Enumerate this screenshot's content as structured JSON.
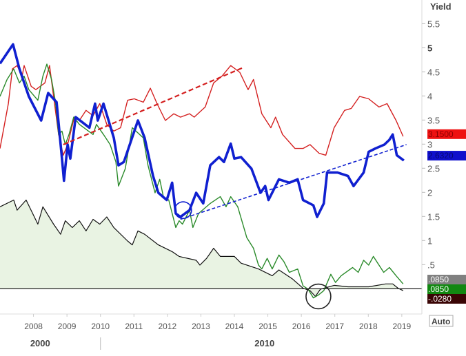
{
  "chart_data": {
    "type": "line",
    "title": "",
    "ylabel": "Yield",
    "xlabel": "",
    "xlim": [
      2007.0,
      2019.6
    ],
    "ylim": [
      -0.51,
      5.99
    ],
    "grid": false,
    "legend": "none",
    "y_ticks": [
      {
        "value": 5.5,
        "label": "5.5"
      },
      {
        "value": 5,
        "label": "5",
        "bold": true
      },
      {
        "value": 4.5,
        "label": "4.5"
      },
      {
        "value": 4,
        "label": "4"
      },
      {
        "value": 3.5,
        "label": "3.5"
      },
      {
        "value": 3,
        "label": "3"
      },
      {
        "value": 2.5,
        "label": "2.5"
      },
      {
        "value": 2,
        "label": "2"
      },
      {
        "value": 1.5,
        "label": "1.5"
      },
      {
        "value": 1,
        "label": "1"
      },
      {
        "value": 0.5,
        "label": ".5"
      }
    ],
    "x_ticks": [
      {
        "value": 2008,
        "label": "2008"
      },
      {
        "value": 2009,
        "label": "2009"
      },
      {
        "value": 2010,
        "label": "2010"
      },
      {
        "value": 2011,
        "label": "2011"
      },
      {
        "value": 2012,
        "label": "2012"
      },
      {
        "value": 2013,
        "label": "2013"
      },
      {
        "value": 2014,
        "label": "2014"
      },
      {
        "value": 2015,
        "label": "2015"
      },
      {
        "value": 2016,
        "label": "2016"
      },
      {
        "value": 2017,
        "label": "2017"
      },
      {
        "value": 2018,
        "label": "2018"
      },
      {
        "value": 2019,
        "label": "2019"
      }
    ],
    "eras": [
      {
        "value": 2008.2,
        "label": "2000"
      },
      {
        "value": 2014.9,
        "label": "2010"
      }
    ],
    "era_divider": 2010.0,
    "series": [
      {
        "name": "black",
        "color": "#111111",
        "width": 1.2,
        "fill": "#e9f3e3",
        "points": [
          [
            2007.0,
            1.7
          ],
          [
            2007.41,
            1.84
          ],
          [
            2007.51,
            1.63
          ],
          [
            2007.78,
            1.84
          ],
          [
            2008.13,
            1.34
          ],
          [
            2008.28,
            1.7
          ],
          [
            2008.6,
            1.34
          ],
          [
            2008.81,
            1.13
          ],
          [
            2008.95,
            1.41
          ],
          [
            2009.16,
            1.27
          ],
          [
            2009.37,
            1.41
          ],
          [
            2009.57,
            1.2
          ],
          [
            2009.78,
            1.44
          ],
          [
            2009.98,
            1.34
          ],
          [
            2010.19,
            1.49
          ],
          [
            2010.4,
            1.27
          ],
          [
            2010.81,
            0.99
          ],
          [
            2010.95,
            0.91
          ],
          [
            2011.12,
            1.2
          ],
          [
            2011.32,
            1.13
          ],
          [
            2011.73,
            0.91
          ],
          [
            2012.14,
            0.77
          ],
          [
            2012.35,
            0.67
          ],
          [
            2012.86,
            0.59
          ],
          [
            2012.97,
            0.49
          ],
          [
            2013.17,
            0.63
          ],
          [
            2013.38,
            0.84
          ],
          [
            2013.58,
            0.67
          ],
          [
            2014.0,
            0.67
          ],
          [
            2014.2,
            0.53
          ],
          [
            2014.72,
            0.41
          ],
          [
            2015.13,
            0.27
          ],
          [
            2015.33,
            0.39
          ],
          [
            2015.74,
            0.2
          ],
          [
            2016.05,
            0.01
          ],
          [
            2016.26,
            -0.04
          ],
          [
            2016.42,
            -0.16
          ],
          [
            2016.57,
            -0.01
          ],
          [
            2016.98,
            0.07
          ],
          [
            2017.39,
            0.04
          ],
          [
            2018.01,
            0.04
          ],
          [
            2018.52,
            0.1
          ],
          [
            2018.73,
            0.1
          ],
          [
            2018.89,
            0.01
          ],
          [
            2019.04,
            -0.04
          ]
        ]
      },
      {
        "name": "red",
        "color": "#d42020",
        "width": 1.4,
        "points": [
          [
            2007.0,
            2.91
          ],
          [
            2007.25,
            3.84
          ],
          [
            2007.37,
            4.56
          ],
          [
            2007.51,
            4.63
          ],
          [
            2007.66,
            4.41
          ],
          [
            2007.72,
            4.63
          ],
          [
            2007.93,
            4.2
          ],
          [
            2008.07,
            4.13
          ],
          [
            2008.34,
            4.27
          ],
          [
            2008.48,
            4.63
          ],
          [
            2008.6,
            3.99
          ],
          [
            2008.75,
            3.2
          ],
          [
            2008.89,
            2.77
          ],
          [
            2009.02,
            2.99
          ],
          [
            2009.22,
            3.56
          ],
          [
            2009.37,
            3.49
          ],
          [
            2009.57,
            3.7
          ],
          [
            2009.78,
            3.59
          ],
          [
            2009.98,
            3.84
          ],
          [
            2010.19,
            3.41
          ],
          [
            2010.4,
            3.27
          ],
          [
            2010.6,
            3.34
          ],
          [
            2010.81,
            3.91
          ],
          [
            2011.01,
            3.94
          ],
          [
            2011.28,
            3.87
          ],
          [
            2011.49,
            4.16
          ],
          [
            2011.69,
            3.84
          ],
          [
            2011.94,
            3.49
          ],
          [
            2012.19,
            3.63
          ],
          [
            2012.39,
            3.56
          ],
          [
            2012.66,
            3.63
          ],
          [
            2012.8,
            3.56
          ],
          [
            2013.13,
            3.77
          ],
          [
            2013.38,
            4.27
          ],
          [
            2013.63,
            4.41
          ],
          [
            2013.89,
            4.63
          ],
          [
            2014.16,
            4.49
          ],
          [
            2014.41,
            4.13
          ],
          [
            2014.57,
            4.34
          ],
          [
            2014.82,
            3.63
          ],
          [
            2015.09,
            3.34
          ],
          [
            2015.23,
            3.56
          ],
          [
            2015.44,
            3.2
          ],
          [
            2015.81,
            2.91
          ],
          [
            2016.05,
            2.91
          ],
          [
            2016.26,
            2.99
          ],
          [
            2016.53,
            2.81
          ],
          [
            2016.73,
            2.77
          ],
          [
            2016.98,
            3.34
          ],
          [
            2017.29,
            3.7
          ],
          [
            2017.49,
            3.74
          ],
          [
            2017.74,
            3.99
          ],
          [
            2018.01,
            3.94
          ],
          [
            2018.32,
            3.77
          ],
          [
            2018.56,
            3.84
          ],
          [
            2018.83,
            3.49
          ],
          [
            2019.04,
            3.16
          ]
        ]
      },
      {
        "name": "green",
        "color": "#2a8a2a",
        "width": 1.4,
        "points": [
          [
            2007.0,
            3.99
          ],
          [
            2007.21,
            4.34
          ],
          [
            2007.41,
            4.56
          ],
          [
            2007.58,
            4.27
          ],
          [
            2007.72,
            4.41
          ],
          [
            2007.86,
            4.13
          ],
          [
            2008.13,
            3.91
          ],
          [
            2008.28,
            4.41
          ],
          [
            2008.4,
            4.66
          ],
          [
            2008.54,
            4.34
          ],
          [
            2008.65,
            3.91
          ],
          [
            2008.75,
            3.2
          ],
          [
            2008.85,
            3.27
          ],
          [
            2008.95,
            2.99
          ],
          [
            2009.06,
            3.2
          ],
          [
            2009.2,
            3.56
          ],
          [
            2009.37,
            3.41
          ],
          [
            2009.78,
            3.2
          ],
          [
            2009.88,
            3.41
          ],
          [
            2010.09,
            3.2
          ],
          [
            2010.29,
            2.99
          ],
          [
            2010.46,
            2.63
          ],
          [
            2010.54,
            2.13
          ],
          [
            2010.74,
            2.49
          ],
          [
            2010.95,
            3.34
          ],
          [
            2011.28,
            3.13
          ],
          [
            2011.42,
            2.56
          ],
          [
            2011.63,
            1.99
          ],
          [
            2011.77,
            2.27
          ],
          [
            2011.88,
            1.91
          ],
          [
            2012.04,
            1.84
          ],
          [
            2012.25,
            1.27
          ],
          [
            2012.35,
            1.41
          ],
          [
            2012.45,
            1.34
          ],
          [
            2012.66,
            1.63
          ],
          [
            2012.76,
            1.27
          ],
          [
            2012.93,
            1.56
          ],
          [
            2013.28,
            1.77
          ],
          [
            2013.58,
            1.91
          ],
          [
            2013.75,
            1.7
          ],
          [
            2013.89,
            1.91
          ],
          [
            2014.1,
            1.7
          ],
          [
            2014.37,
            1.06
          ],
          [
            2014.57,
            0.84
          ],
          [
            2014.72,
            0.49
          ],
          [
            2014.82,
            0.41
          ],
          [
            2014.98,
            0.63
          ],
          [
            2015.13,
            0.41
          ],
          [
            2015.33,
            0.7
          ],
          [
            2015.48,
            0.56
          ],
          [
            2015.64,
            0.34
          ],
          [
            2015.89,
            0.41
          ],
          [
            2016.05,
            0.06
          ],
          [
            2016.2,
            -0.01
          ],
          [
            2016.36,
            -0.19
          ],
          [
            2016.51,
            -0.13
          ],
          [
            2016.67,
            -0.04
          ],
          [
            2016.88,
            0.3
          ],
          [
            2017.02,
            0.13
          ],
          [
            2017.19,
            0.27
          ],
          [
            2017.53,
            0.44
          ],
          [
            2017.7,
            0.34
          ],
          [
            2017.86,
            0.59
          ],
          [
            2018.01,
            0.49
          ],
          [
            2018.15,
            0.67
          ],
          [
            2018.32,
            0.49
          ],
          [
            2018.46,
            0.34
          ],
          [
            2018.63,
            0.44
          ],
          [
            2018.83,
            0.27
          ],
          [
            2019.04,
            0.1
          ]
        ]
      },
      {
        "name": "blue",
        "color": "#1020d0",
        "width": 3.6,
        "points": [
          [
            2007.0,
            4.67
          ],
          [
            2007.39,
            5.07
          ],
          [
            2007.58,
            4.56
          ],
          [
            2007.86,
            3.99
          ],
          [
            2008.23,
            3.49
          ],
          [
            2008.44,
            4.06
          ],
          [
            2008.69,
            3.87
          ],
          [
            2008.85,
            2.7
          ],
          [
            2008.91,
            2.24
          ],
          [
            2009.02,
            2.99
          ],
          [
            2009.1,
            2.7
          ],
          [
            2009.26,
            3.56
          ],
          [
            2009.67,
            3.34
          ],
          [
            2009.84,
            3.84
          ],
          [
            2009.92,
            3.49
          ],
          [
            2010.09,
            3.84
          ],
          [
            2010.4,
            3.13
          ],
          [
            2010.54,
            2.56
          ],
          [
            2010.7,
            2.63
          ],
          [
            2011.12,
            3.49
          ],
          [
            2011.32,
            3.13
          ],
          [
            2011.57,
            2.34
          ],
          [
            2011.73,
            1.99
          ],
          [
            2011.98,
            1.84
          ],
          [
            2012.14,
            2.2
          ],
          [
            2012.25,
            1.56
          ],
          [
            2012.39,
            1.49
          ],
          [
            2012.66,
            1.63
          ],
          [
            2012.86,
            1.99
          ],
          [
            2013.07,
            1.77
          ],
          [
            2013.28,
            2.56
          ],
          [
            2013.54,
            2.73
          ],
          [
            2013.69,
            2.63
          ],
          [
            2013.89,
            3.01
          ],
          [
            2014.0,
            2.7
          ],
          [
            2014.2,
            2.73
          ],
          [
            2014.51,
            2.49
          ],
          [
            2014.78,
            1.99
          ],
          [
            2014.92,
            2.13
          ],
          [
            2015.02,
            1.84
          ],
          [
            2015.33,
            2.27
          ],
          [
            2015.64,
            2.2
          ],
          [
            2015.89,
            2.27
          ],
          [
            2016.05,
            1.84
          ],
          [
            2016.36,
            1.73
          ],
          [
            2016.47,
            1.49
          ],
          [
            2016.67,
            1.77
          ],
          [
            2016.77,
            2.41
          ],
          [
            2017.08,
            2.41
          ],
          [
            2017.39,
            2.34
          ],
          [
            2017.56,
            2.13
          ],
          [
            2017.86,
            2.41
          ],
          [
            2018.01,
            2.84
          ],
          [
            2018.21,
            2.91
          ],
          [
            2018.48,
            2.99
          ],
          [
            2018.63,
            3.09
          ],
          [
            2018.73,
            3.2
          ],
          [
            2018.85,
            2.77
          ],
          [
            2019.06,
            2.66
          ]
        ]
      }
    ],
    "trendlines": [
      {
        "name": "red-trend",
        "color": "#d42020",
        "width": 2.2,
        "dash": "7,4",
        "from": [
          2008.89,
          2.99
        ],
        "to": [
          2014.3,
          4.6
        ]
      },
      {
        "name": "blue-trend",
        "color": "#1020d0",
        "width": 1.6,
        "dash": "5,3",
        "from": [
          2012.39,
          1.44
        ],
        "to": [
          2019.14,
          2.99
        ]
      }
    ],
    "annotations": [
      {
        "name": "blue-circle",
        "color": "#1020d0",
        "at": [
          2012.47,
          1.63
        ],
        "radius_years": 0.25
      },
      {
        "name": "black-circle",
        "color": "#222222",
        "at": [
          2016.51,
          -0.16
        ],
        "radius_years": 0.37
      }
    ],
    "zero_line": 0,
    "value_badges": [
      {
        "name": "red-value-badge",
        "label": "3.1500",
        "value": 3.15,
        "bg": "#ee1111",
        "fg": "#8a0000"
      },
      {
        "name": "blue-value-badge",
        "label": "2.6320",
        "value": 2.632,
        "bg": "#1010cc",
        "fg": "#060670"
      },
      {
        "name": "black-value-badge",
        "label": ".0850",
        "value": 0.19,
        "bg": "#808080",
        "fg": "#ffffff"
      },
      {
        "name": "green-value-badge",
        "label": ".0850",
        "value": -0.01,
        "bg": "#118811",
        "fg": "#ffffff"
      },
      {
        "name": "dark-value-badge",
        "label": "-.0280",
        "value": -0.21,
        "bg": "#3a0505",
        "fg": "#ffffff"
      }
    ],
    "auto_button": "Auto"
  }
}
